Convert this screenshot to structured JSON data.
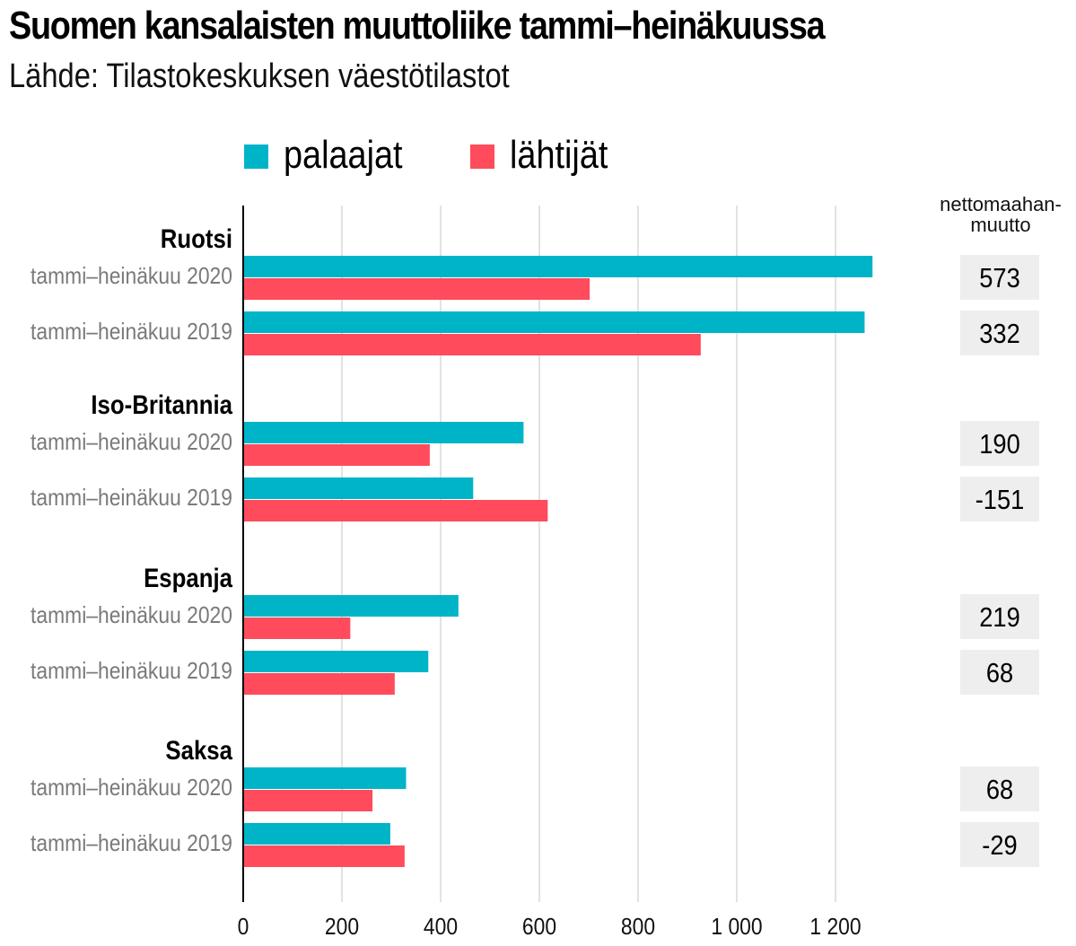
{
  "title": "Suomen kansalaisten muuttoliike tammi–heinäkuussa",
  "subtitle": "Lähde: Tilastokeskuksen väestötilastot",
  "legend": [
    {
      "label": "palaajat",
      "color": "#00b4c8"
    },
    {
      "label": "lähtijät",
      "color": "#ff4b5c"
    }
  ],
  "net_header": "nettomaahan-muutto",
  "chart_data": {
    "type": "bar",
    "orientation": "horizontal",
    "title": "Suomen kansalaisten muuttoliike tammi–heinäkuussa",
    "subtitle": "Lähde: Tilastokeskuksen väestötilastot",
    "xlabel": "",
    "ylabel": "",
    "xlim": [
      0,
      1400
    ],
    "x_ticks": [
      0,
      200,
      400,
      600,
      800,
      1000,
      1200
    ],
    "x_tick_labels": [
      "0",
      "200",
      "400",
      "600",
      "800",
      "1 000",
      "1 200"
    ],
    "grid": true,
    "legend_position": "top",
    "series": [
      {
        "name": "palaajat",
        "color": "#00b4c8"
      },
      {
        "name": "lähtijät",
        "color": "#ff4b5c"
      }
    ],
    "groups": [
      {
        "name": "Ruotsi",
        "rows": [
          {
            "label": "tammi–heinäkuu 2020",
            "palaajat": 1275,
            "lahtijat": 702,
            "net": "573"
          },
          {
            "label": "tammi–heinäkuu 2019",
            "palaajat": 1259,
            "lahtijat": 927,
            "net": "332"
          }
        ]
      },
      {
        "name": "Iso-Britannia",
        "rows": [
          {
            "label": "tammi–heinäkuu 2020",
            "palaajat": 568,
            "lahtijat": 378,
            "net": "190"
          },
          {
            "label": "tammi–heinäkuu 2019",
            "palaajat": 466,
            "lahtijat": 617,
            "net": "-151"
          }
        ]
      },
      {
        "name": "Espanja",
        "rows": [
          {
            "label": "tammi–heinäkuu 2020",
            "palaajat": 436,
            "lahtijat": 217,
            "net": "219"
          },
          {
            "label": "tammi–heinäkuu 2019",
            "palaajat": 375,
            "lahtijat": 307,
            "net": "68"
          }
        ]
      },
      {
        "name": "Saksa",
        "rows": [
          {
            "label": "tammi–heinäkuu 2020",
            "palaajat": 330,
            "lahtijat": 262,
            "net": "68"
          },
          {
            "label": "tammi–heinäkuu 2019",
            "palaajat": 298,
            "lahtijat": 327,
            "net": "-29"
          }
        ]
      }
    ]
  }
}
